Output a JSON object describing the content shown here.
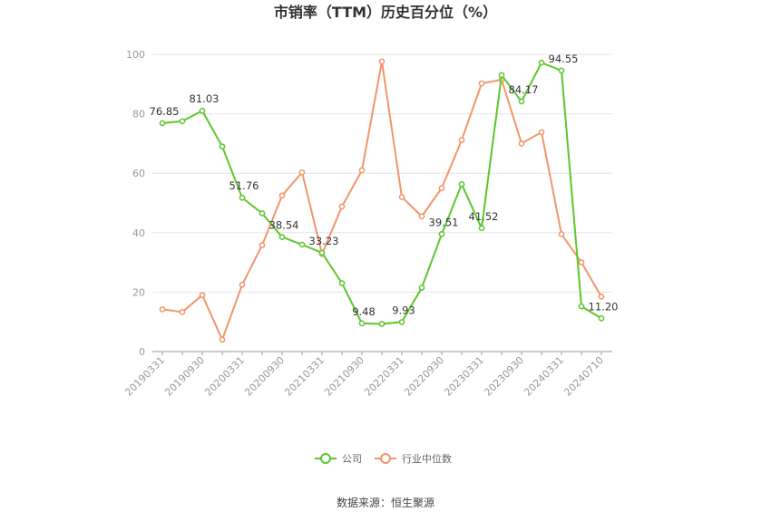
{
  "chart_data": {
    "type": "line",
    "title": "市销率（TTM）历史百分位（%）",
    "xlabel": "",
    "ylabel": "",
    "ylim": [
      0,
      100
    ],
    "yticks": [
      "0",
      "20",
      "40",
      "60",
      "80",
      "100"
    ],
    "xtick_labels": [
      "20190331",
      "20190930",
      "20200331",
      "20200930",
      "20210331",
      "20210930",
      "20220331",
      "20220930",
      "20230331",
      "20230930",
      "20240331",
      "20240710"
    ],
    "xtick_index": [
      0,
      2,
      4,
      6,
      8,
      10,
      12,
      14,
      16,
      18,
      20,
      22
    ],
    "grid": "horizontal",
    "legend_position": "bottom",
    "series": [
      {
        "name": "公司",
        "color": "#5CC72D",
        "values": [
          76.85,
          77.5,
          81.03,
          69.0,
          51.76,
          46.5,
          38.54,
          36.0,
          33.23,
          23.0,
          9.48,
          9.3,
          9.93,
          21.5,
          39.51,
          56.3,
          41.52,
          93.0,
          84.17,
          97.2,
          94.55,
          15.2,
          11.2
        ],
        "labels": {
          "0": "76.85",
          "2": "81.03",
          "4": "51.76",
          "6": "38.54",
          "8": "33.23",
          "10": "9.48",
          "12": "9.93",
          "14": "39.51",
          "16": "41.52",
          "18": "84.17",
          "20": "94.55",
          "22": "11.20"
        }
      },
      {
        "name": "行业中位数",
        "color": "#F2956A",
        "values": [
          14.2,
          13.3,
          19.0,
          4.0,
          22.5,
          35.8,
          52.5,
          60.3,
          32.8,
          48.8,
          61.0,
          97.6,
          52.0,
          45.5,
          55.0,
          71.2,
          90.2,
          91.5,
          70.0,
          73.8,
          39.5,
          30.0,
          18.5
        ]
      }
    ]
  },
  "source": "数据来源：恒生聚源"
}
